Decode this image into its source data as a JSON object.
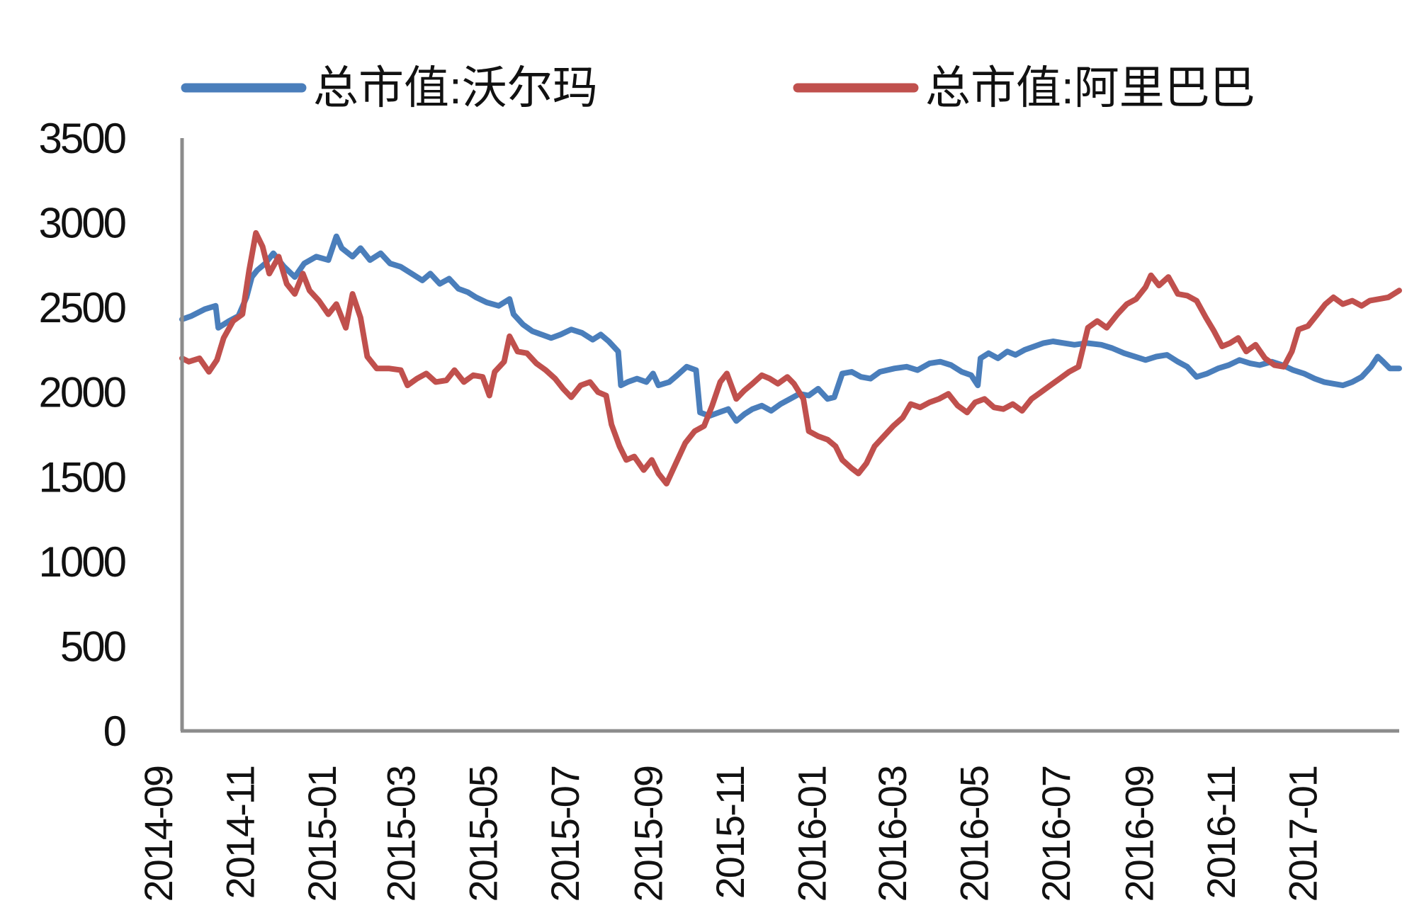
{
  "chart_data": {
    "type": "line",
    "legend": {
      "placement": "top",
      "entries": [
        "总市值:沃尔玛",
        "总市值:阿里巴巴"
      ]
    },
    "ylim": [
      0,
      3500
    ],
    "yticks": [
      "3500",
      "3000",
      "2500",
      "2000",
      "1500",
      "1000",
      "500",
      "0"
    ],
    "xlim": [
      "2014-09-19",
      "2017-03-14"
    ],
    "xticks": [
      "2014-09",
      "2014-11",
      "2015-01",
      "2015-03",
      "2015-05",
      "2015-07",
      "2015-09",
      "2015-11",
      "2016-01",
      "2016-03",
      "2016-05",
      "2016-07",
      "2016-09",
      "2016-11",
      "2017-01"
    ],
    "grid": false,
    "series": [
      {
        "name": "总市值:沃尔玛",
        "color": "#4a7ebb",
        "points": [
          [
            "2014-09-19",
            2430
          ],
          [
            "2014-09-26",
            2450
          ],
          [
            "2014-10-06",
            2490
          ],
          [
            "2014-10-14",
            2510
          ],
          [
            "2014-10-16",
            2380
          ],
          [
            "2014-10-24",
            2420
          ],
          [
            "2014-10-31",
            2450
          ],
          [
            "2014-11-06",
            2560
          ],
          [
            "2014-11-10",
            2680
          ],
          [
            "2014-11-14",
            2720
          ],
          [
            "2014-11-20",
            2760
          ],
          [
            "2014-11-26",
            2820
          ],
          [
            "2014-12-04",
            2740
          ],
          [
            "2014-12-12",
            2680
          ],
          [
            "2014-12-19",
            2760
          ],
          [
            "2014-12-28",
            2800
          ],
          [
            "2015-01-06",
            2780
          ],
          [
            "2015-01-12",
            2920
          ],
          [
            "2015-01-16",
            2850
          ],
          [
            "2015-01-24",
            2800
          ],
          [
            "2015-01-30",
            2850
          ],
          [
            "2015-02-06",
            2780
          ],
          [
            "2015-02-14",
            2820
          ],
          [
            "2015-02-21",
            2760
          ],
          [
            "2015-03-01",
            2740
          ],
          [
            "2015-03-09",
            2700
          ],
          [
            "2015-03-17",
            2660
          ],
          [
            "2015-03-23",
            2700
          ],
          [
            "2015-03-30",
            2640
          ],
          [
            "2015-04-06",
            2670
          ],
          [
            "2015-04-13",
            2610
          ],
          [
            "2015-04-20",
            2590
          ],
          [
            "2015-04-26",
            2560
          ],
          [
            "2015-05-04",
            2530
          ],
          [
            "2015-05-13",
            2510
          ],
          [
            "2015-05-21",
            2550
          ],
          [
            "2015-05-24",
            2460
          ],
          [
            "2015-05-31",
            2400
          ],
          [
            "2015-06-07",
            2360
          ],
          [
            "2015-06-14",
            2340
          ],
          [
            "2015-06-21",
            2320
          ],
          [
            "2015-06-28",
            2340
          ],
          [
            "2015-07-06",
            2370
          ],
          [
            "2015-07-14",
            2350
          ],
          [
            "2015-07-22",
            2310
          ],
          [
            "2015-07-28",
            2340
          ],
          [
            "2015-08-03",
            2300
          ],
          [
            "2015-08-10",
            2240
          ],
          [
            "2015-08-12",
            2040
          ],
          [
            "2015-08-17",
            2060
          ],
          [
            "2015-08-24",
            2080
          ],
          [
            "2015-08-31",
            2060
          ],
          [
            "2015-09-05",
            2110
          ],
          [
            "2015-09-09",
            2040
          ],
          [
            "2015-09-17",
            2060
          ],
          [
            "2015-09-23",
            2100
          ],
          [
            "2015-09-30",
            2150
          ],
          [
            "2015-10-07",
            2130
          ],
          [
            "2015-10-10",
            1880
          ],
          [
            "2015-10-17",
            1860
          ],
          [
            "2015-10-24",
            1880
          ],
          [
            "2015-10-31",
            1900
          ],
          [
            "2015-11-06",
            1830
          ],
          [
            "2015-11-12",
            1870
          ],
          [
            "2015-11-18",
            1900
          ],
          [
            "2015-11-25",
            1920
          ],
          [
            "2015-12-02",
            1890
          ],
          [
            "2015-12-09",
            1930
          ],
          [
            "2015-12-16",
            1960
          ],
          [
            "2015-12-23",
            1990
          ],
          [
            "2015-12-30",
            1980
          ],
          [
            "2016-01-06",
            2020
          ],
          [
            "2016-01-13",
            1960
          ],
          [
            "2016-01-18",
            1970
          ],
          [
            "2016-01-24",
            2110
          ],
          [
            "2016-01-31",
            2120
          ],
          [
            "2016-02-07",
            2090
          ],
          [
            "2016-02-14",
            2080
          ],
          [
            "2016-02-21",
            2120
          ],
          [
            "2016-03-03",
            2140
          ],
          [
            "2016-03-12",
            2150
          ],
          [
            "2016-03-20",
            2130
          ],
          [
            "2016-03-29",
            2170
          ],
          [
            "2016-04-06",
            2180
          ],
          [
            "2016-04-14",
            2160
          ],
          [
            "2016-04-22",
            2120
          ],
          [
            "2016-04-29",
            2100
          ],
          [
            "2016-05-04",
            2040
          ],
          [
            "2016-05-06",
            2200
          ],
          [
            "2016-05-12",
            2230
          ],
          [
            "2016-05-19",
            2200
          ],
          [
            "2016-05-26",
            2240
          ],
          [
            "2016-06-01",
            2220
          ],
          [
            "2016-06-08",
            2250
          ],
          [
            "2016-06-15",
            2270
          ],
          [
            "2016-06-22",
            2290
          ],
          [
            "2016-06-29",
            2300
          ],
          [
            "2016-07-07",
            2290
          ],
          [
            "2016-07-15",
            2280
          ],
          [
            "2016-07-24",
            2290
          ],
          [
            "2016-08-04",
            2280
          ],
          [
            "2016-08-12",
            2260
          ],
          [
            "2016-08-21",
            2230
          ],
          [
            "2016-08-29",
            2210
          ],
          [
            "2016-09-06",
            2190
          ],
          [
            "2016-09-14",
            2210
          ],
          [
            "2016-09-22",
            2220
          ],
          [
            "2016-09-30",
            2180
          ],
          [
            "2016-10-07",
            2150
          ],
          [
            "2016-10-14",
            2090
          ],
          [
            "2016-10-22",
            2110
          ],
          [
            "2016-10-30",
            2140
          ],
          [
            "2016-11-07",
            2160
          ],
          [
            "2016-11-15",
            2190
          ],
          [
            "2016-11-23",
            2170
          ],
          [
            "2016-11-30",
            2160
          ],
          [
            "2016-12-09",
            2180
          ],
          [
            "2016-12-17",
            2160
          ],
          [
            "2016-12-25",
            2130
          ],
          [
            "2017-01-02",
            2110
          ],
          [
            "2017-01-10",
            2080
          ],
          [
            "2017-01-17",
            2060
          ],
          [
            "2017-01-24",
            2050
          ],
          [
            "2017-01-31",
            2040
          ],
          [
            "2017-02-07",
            2060
          ],
          [
            "2017-02-14",
            2090
          ],
          [
            "2017-02-21",
            2150
          ],
          [
            "2017-02-26",
            2210
          ],
          [
            "2017-03-02",
            2180
          ],
          [
            "2017-03-07",
            2140
          ],
          [
            "2017-03-14",
            2140
          ]
        ]
      },
      {
        "name": "总市值:阿里巴巴",
        "color": "#c0504d",
        "points": [
          [
            "2014-09-19",
            2200
          ],
          [
            "2014-09-24",
            2180
          ],
          [
            "2014-10-02",
            2200
          ],
          [
            "2014-10-09",
            2120
          ],
          [
            "2014-10-15",
            2190
          ],
          [
            "2014-10-20",
            2320
          ],
          [
            "2014-10-27",
            2420
          ],
          [
            "2014-11-03",
            2460
          ],
          [
            "2014-11-08",
            2720
          ],
          [
            "2014-11-13",
            2940
          ],
          [
            "2014-11-18",
            2860
          ],
          [
            "2014-11-23",
            2700
          ],
          [
            "2014-11-30",
            2800
          ],
          [
            "2014-12-06",
            2640
          ],
          [
            "2014-12-12",
            2580
          ],
          [
            "2014-12-18",
            2700
          ],
          [
            "2014-12-23",
            2600
          ],
          [
            "2014-12-30",
            2540
          ],
          [
            "2015-01-06",
            2460
          ],
          [
            "2015-01-12",
            2520
          ],
          [
            "2015-01-19",
            2380
          ],
          [
            "2015-01-24",
            2580
          ],
          [
            "2015-01-30",
            2440
          ],
          [
            "2015-02-04",
            2210
          ],
          [
            "2015-02-11",
            2140
          ],
          [
            "2015-02-20",
            2140
          ],
          [
            "2015-03-01",
            2130
          ],
          [
            "2015-03-06",
            2040
          ],
          [
            "2015-03-13",
            2080
          ],
          [
            "2015-03-20",
            2110
          ],
          [
            "2015-03-27",
            2060
          ],
          [
            "2015-04-04",
            2070
          ],
          [
            "2015-04-10",
            2130
          ],
          [
            "2015-04-17",
            2060
          ],
          [
            "2015-04-24",
            2100
          ],
          [
            "2015-05-01",
            2090
          ],
          [
            "2015-05-06",
            1980
          ],
          [
            "2015-05-10",
            2120
          ],
          [
            "2015-05-17",
            2180
          ],
          [
            "2015-05-21",
            2330
          ],
          [
            "2015-05-27",
            2240
          ],
          [
            "2015-06-03",
            2230
          ],
          [
            "2015-06-10",
            2170
          ],
          [
            "2015-06-17",
            2130
          ],
          [
            "2015-06-24",
            2080
          ],
          [
            "2015-06-30",
            2020
          ],
          [
            "2015-07-06",
            1970
          ],
          [
            "2015-07-13",
            2040
          ],
          [
            "2015-07-20",
            2060
          ],
          [
            "2015-07-26",
            2000
          ],
          [
            "2015-08-01",
            1980
          ],
          [
            "2015-08-05",
            1810
          ],
          [
            "2015-08-11",
            1680
          ],
          [
            "2015-08-16",
            1600
          ],
          [
            "2015-08-22",
            1620
          ],
          [
            "2015-08-29",
            1540
          ],
          [
            "2015-09-04",
            1600
          ],
          [
            "2015-09-09",
            1520
          ],
          [
            "2015-09-15",
            1460
          ],
          [
            "2015-09-22",
            1580
          ],
          [
            "2015-09-29",
            1700
          ],
          [
            "2015-10-06",
            1770
          ],
          [
            "2015-10-13",
            1800
          ],
          [
            "2015-10-19",
            1920
          ],
          [
            "2015-10-25",
            2060
          ],
          [
            "2015-10-30",
            2110
          ],
          [
            "2015-11-06",
            1960
          ],
          [
            "2015-11-12",
            2010
          ],
          [
            "2015-11-18",
            2050
          ],
          [
            "2015-11-25",
            2100
          ],
          [
            "2015-12-01",
            2080
          ],
          [
            "2015-12-07",
            2050
          ],
          [
            "2015-12-14",
            2090
          ],
          [
            "2015-12-19",
            2050
          ],
          [
            "2015-12-26",
            1960
          ],
          [
            "2015-12-30",
            1770
          ],
          [
            "2016-01-06",
            1740
          ],
          [
            "2016-01-13",
            1720
          ],
          [
            "2016-01-19",
            1680
          ],
          [
            "2016-01-24",
            1600
          ],
          [
            "2016-01-31",
            1550
          ],
          [
            "2016-02-05",
            1520
          ],
          [
            "2016-02-11",
            1580
          ],
          [
            "2016-02-17",
            1680
          ],
          [
            "2016-02-24",
            1740
          ],
          [
            "2016-03-02",
            1800
          ],
          [
            "2016-03-09",
            1850
          ],
          [
            "2016-03-15",
            1930
          ],
          [
            "2016-03-22",
            1910
          ],
          [
            "2016-03-29",
            1940
          ],
          [
            "2016-04-05",
            1960
          ],
          [
            "2016-04-12",
            1990
          ],
          [
            "2016-04-19",
            1920
          ],
          [
            "2016-04-26",
            1880
          ],
          [
            "2016-05-02",
            1940
          ],
          [
            "2016-05-09",
            1960
          ],
          [
            "2016-05-16",
            1910
          ],
          [
            "2016-05-23",
            1900
          ],
          [
            "2016-05-30",
            1930
          ],
          [
            "2016-06-06",
            1890
          ],
          [
            "2016-06-13",
            1960
          ],
          [
            "2016-06-20",
            2000
          ],
          [
            "2016-06-27",
            2040
          ],
          [
            "2016-07-04",
            2080
          ],
          [
            "2016-07-11",
            2120
          ],
          [
            "2016-07-18",
            2150
          ],
          [
            "2016-07-25",
            2380
          ],
          [
            "2016-08-01",
            2420
          ],
          [
            "2016-08-08",
            2380
          ],
          [
            "2016-08-16",
            2460
          ],
          [
            "2016-08-23",
            2520
          ],
          [
            "2016-08-30",
            2550
          ],
          [
            "2016-09-06",
            2620
          ],
          [
            "2016-09-10",
            2690
          ],
          [
            "2016-09-16",
            2630
          ],
          [
            "2016-09-23",
            2680
          ],
          [
            "2016-09-30",
            2580
          ],
          [
            "2016-10-07",
            2570
          ],
          [
            "2016-10-14",
            2540
          ],
          [
            "2016-10-21",
            2440
          ],
          [
            "2016-10-27",
            2360
          ],
          [
            "2016-11-02",
            2270
          ],
          [
            "2016-11-08",
            2290
          ],
          [
            "2016-11-14",
            2320
          ],
          [
            "2016-11-20",
            2240
          ],
          [
            "2016-11-27",
            2280
          ],
          [
            "2016-12-04",
            2200
          ],
          [
            "2016-12-11",
            2160
          ],
          [
            "2016-12-18",
            2150
          ],
          [
            "2016-12-24",
            2240
          ],
          [
            "2016-12-29",
            2370
          ],
          [
            "2017-01-05",
            2390
          ],
          [
            "2017-01-12",
            2460
          ],
          [
            "2017-01-18",
            2520
          ],
          [
            "2017-01-24",
            2560
          ],
          [
            "2017-01-31",
            2520
          ],
          [
            "2017-02-07",
            2540
          ],
          [
            "2017-02-14",
            2510
          ],
          [
            "2017-02-20",
            2540
          ],
          [
            "2017-02-27",
            2550
          ],
          [
            "2017-03-06",
            2560
          ],
          [
            "2017-03-14",
            2600
          ]
        ]
      }
    ]
  }
}
